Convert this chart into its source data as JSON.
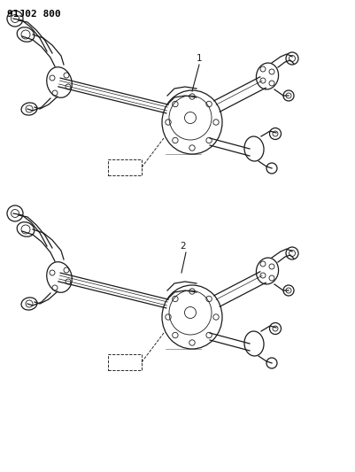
{
  "title_code": "91J02 800",
  "background_color": "#ffffff",
  "line_color": "#1a1a1a",
  "diagram1_label": "1",
  "diagram2_label": "2",
  "fig_w": 4.01,
  "fig_h": 5.33,
  "dpi": 100
}
